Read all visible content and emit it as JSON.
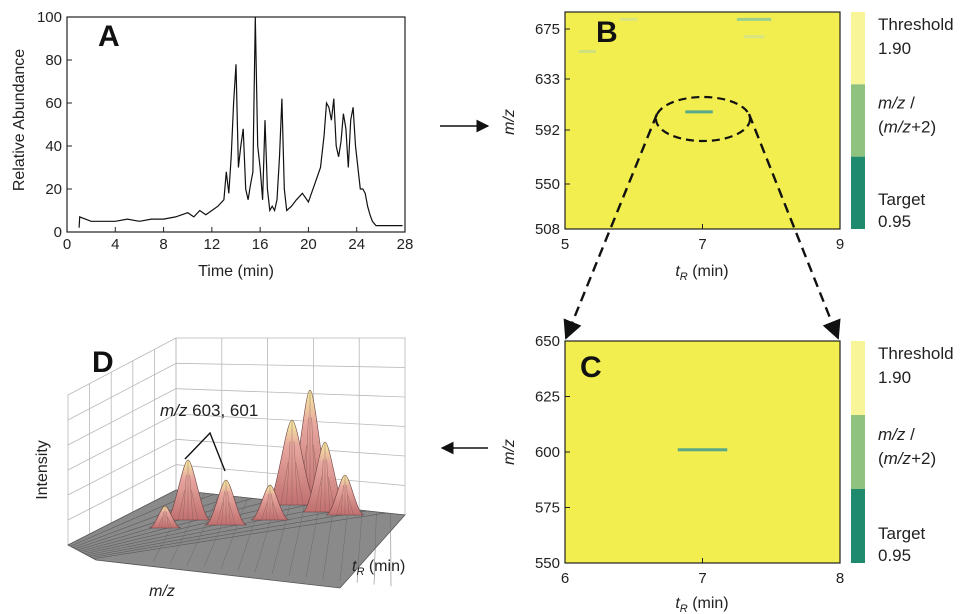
{
  "chart_data": [
    {
      "panel": "A",
      "type": "line",
      "xlabel": "Time (min)",
      "ylabel": "Relative Abundance",
      "xlim": [
        0,
        28
      ],
      "ylim": [
        0,
        100
      ],
      "xticks": [
        "0",
        "4",
        "8",
        "12",
        "16",
        "20",
        "24",
        "28"
      ],
      "yticks": [
        "0",
        "20",
        "40",
        "60",
        "80",
        "100"
      ],
      "x": [
        1.0,
        1.05,
        2,
        3,
        4,
        5,
        6,
        7,
        8,
        9,
        9.5,
        10,
        10.5,
        11,
        11.5,
        12,
        12.5,
        13,
        13.2,
        13.4,
        13.6,
        13.8,
        14.0,
        14.2,
        14.4,
        14.6,
        14.8,
        15.0,
        15.2,
        15.4,
        15.6,
        15.8,
        16.0,
        16.2,
        16.4,
        16.6,
        16.8,
        17.0,
        17.2,
        17.4,
        17.6,
        17.8,
        18.0,
        18.2,
        18.6,
        19.0,
        19.5,
        20.0,
        20.5,
        21.0,
        21.3,
        21.5,
        21.7,
        21.9,
        22.1,
        22.3,
        22.5,
        22.7,
        22.9,
        23.1,
        23.3,
        23.5,
        23.7,
        23.9,
        24.1,
        24.3,
        24.5,
        24.7,
        24.9,
        25.1,
        25.3,
        25.6,
        26.0,
        27.0,
        27.8
      ],
      "y": [
        2,
        7,
        5,
        5,
        5,
        6,
        5,
        6,
        6,
        7,
        8,
        9,
        7,
        10,
        8,
        10,
        12,
        15,
        28,
        18,
        35,
        60,
        78,
        30,
        40,
        48,
        20,
        15,
        22,
        28,
        100,
        40,
        30,
        15,
        52,
        20,
        10,
        12,
        10,
        15,
        35,
        62,
        20,
        10,
        12,
        15,
        18,
        14,
        22,
        30,
        45,
        60,
        58,
        52,
        62,
        40,
        35,
        42,
        55,
        48,
        30,
        52,
        58,
        40,
        30,
        20,
        20,
        18,
        12,
        8,
        5,
        3,
        3,
        3,
        3
      ]
    },
    {
      "panel": "B",
      "type": "heatmap",
      "xlabel_main": "t",
      "xlabel_sub": "R",
      "xlabel_unit": " (min)",
      "ylabel": "m/z",
      "xticks": [
        "5",
        "7",
        "9"
      ],
      "yticks": [
        "508",
        "550",
        "592",
        "633",
        "675"
      ],
      "xlim": [
        5,
        9
      ],
      "ylim": [
        508,
        684
      ],
      "background": "#f2ee4f",
      "features": [
        {
          "x0": 6.75,
          "x1": 7.15,
          "y": 603,
          "color": "#5aa88a"
        },
        {
          "x0": 7.5,
          "x1": 8.0,
          "y": 678,
          "color": "#9dcf8f"
        },
        {
          "x0": 7.6,
          "x1": 7.9,
          "y": 664,
          "color": "#d9e580"
        },
        {
          "x0": 5.8,
          "x1": 6.05,
          "y": 678,
          "color": "#d9e580"
        },
        {
          "x0": 5.2,
          "x1": 5.45,
          "y": 652,
          "color": "#cfe07c"
        }
      ]
    },
    {
      "panel": "C",
      "type": "heatmap",
      "xlabel_main": "t",
      "xlabel_sub": "R",
      "xlabel_unit": " (min)",
      "ylabel": "m/z",
      "xticks": [
        "6",
        "7",
        "8"
      ],
      "yticks": [
        "550",
        "575",
        "600",
        "625",
        "650"
      ],
      "xlim": [
        6,
        8
      ],
      "ylim": [
        550,
        650
      ],
      "background": "#f2ee4f",
      "features": [
        {
          "x0": 6.82,
          "x1": 7.18,
          "y": 601,
          "color": "#5aa88a"
        }
      ]
    },
    {
      "panel": "D",
      "type": "surface",
      "zlabel": "Intensity",
      "xlabel": "m/z",
      "ylabel_main": "t",
      "ylabel_sub": "R",
      "ylabel_unit": " (min)",
      "annotation_prefix": "m/z",
      "annotation_values": " 603, 601"
    }
  ],
  "colorbar": {
    "colors": [
      "#f7f598",
      "#8fc27e",
      "#1f8a6d"
    ],
    "threshold_label": "Threshold",
    "threshold_value": "1.90",
    "ratio_label_1": "m/z /",
    "ratio_label_2": "(m/z+2)",
    "target_label": "Target",
    "target_value": "0.95"
  },
  "panels": {
    "a": "A",
    "b": "B",
    "c": "C",
    "d": "D"
  }
}
